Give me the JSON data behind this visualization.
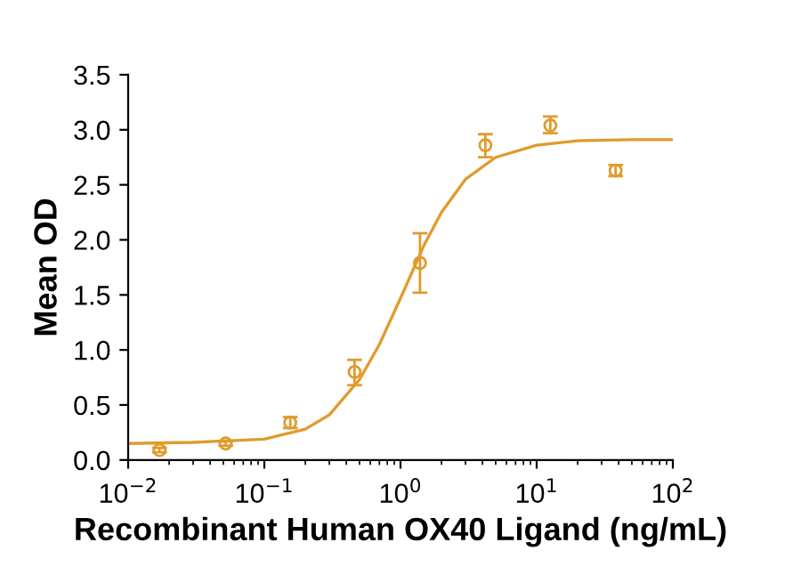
{
  "chart_data": {
    "type": "scatter",
    "xlabel": "Recombinant Human OX40 Ligand (ng/mL)",
    "ylabel": "Mean OD",
    "log": "x",
    "marker": "circle",
    "grid": false,
    "legend": false,
    "xlim": [
      0.01,
      100
    ],
    "xticks": [
      {
        "value": 0.01,
        "label": "10$^{−2}$"
      },
      {
        "value": 0.1,
        "label": "10$^{−1}$"
      },
      {
        "value": 1,
        "label": "10$^{0}$"
      },
      {
        "value": 10,
        "label": "10$^{1}$"
      },
      {
        "value": 100,
        "label": "10$^{2}$"
      }
    ],
    "ylim": [
      0,
      3.5
    ],
    "yticks": [
      {
        "value": 0,
        "label": "0.0"
      },
      0.5,
      {
        "value": 1,
        "label": "1.0"
      },
      1.5,
      {
        "value": 2,
        "label": "2.0"
      },
      2.5,
      {
        "value": 3,
        "label": "3.0"
      },
      3.5
    ],
    "series": [
      {
        "color": "#e09b2d",
        "x": [
          0.017,
          0.052,
          0.155,
          0.46,
          1.39,
          4.2,
          12.6,
          38
        ],
        "values": [
          0.09,
          0.15,
          0.34,
          0.8,
          1.79,
          2.86,
          3.04,
          2.63
        ],
        "errors": [
          0.02,
          0.02,
          [
            0.29,
            0.39
          ],
          [
            0.68,
            0.91
          ],
          [
            1.52,
            2.06
          ],
          [
            2.75,
            2.96
          ],
          [
            2.97,
            3.12
          ],
          [
            2.58,
            2.68
          ]
        ]
      },
      {
        "type": "line",
        "color": "#e09b2d",
        "marker": "none",
        "x": [
          0.01,
          0.03,
          0.1,
          0.2,
          0.3,
          0.5,
          0.7,
          1,
          1.5,
          2,
          3,
          5,
          10,
          20,
          50,
          100
        ],
        "values": [
          0.15,
          0.16,
          0.19,
          0.28,
          0.41,
          0.73,
          1.05,
          1.47,
          1.96,
          2.25,
          2.55,
          2.75,
          2.86,
          2.9,
          2.91,
          2.91
        ]
      }
    ]
  }
}
